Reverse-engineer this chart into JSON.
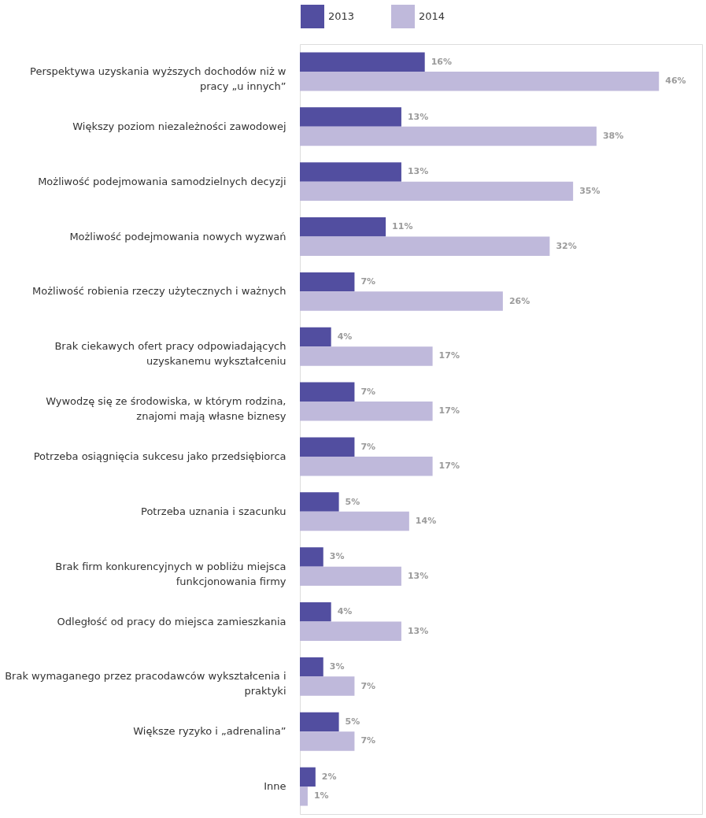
{
  "chart_data": {
    "type": "bar",
    "orientation": "horizontal",
    "legend": "top left",
    "categories": [
      "Perspektywa uzyskania wyższych dochodów niż w pracy „u innych”",
      "Większy poziom niezależności zawodowej",
      "Możliwość podejmowania samodzielnych decyzji",
      "Możliwość podejmowania nowych wyzwań",
      "Możliwość robienia rzeczy użytecznych i ważnych",
      "Brak ciekawych ofert pracy odpowiadających uzyskanemu wykształceniu",
      "Wywodzę się ze środowiska, w którym rodzina, znajomi mają własne biznesy",
      "Potrzeba osiągnięcia sukcesu jako przedsiębiorca",
      "Potrzeba uznania i szacunku",
      "Brak firm konkurencyjnych w pobliżu miejsca funkcjonowania firmy",
      "Odległość od pracy do miejsca zamieszkania",
      "Brak wymaganego przez pracodawców wykształcenia i praktyki",
      "Większe ryzyko i „adrenalina”",
      "Inne"
    ],
    "series": [
      {
        "name": "2013",
        "color": "#524ea0",
        "values": [
          16,
          13,
          13,
          11,
          7,
          4,
          7,
          7,
          5,
          3,
          4,
          3,
          5,
          2
        ],
        "value_labels": [
          "16%",
          "13%",
          "13%",
          "11%",
          "7%",
          "4%",
          "7%",
          "7%",
          "5%",
          "3%",
          "4%",
          "3%",
          "5%",
          "2%"
        ]
      },
      {
        "name": "2014",
        "color": "#bfb9db",
        "values": [
          46,
          38,
          35,
          32,
          26,
          17,
          17,
          17,
          14,
          13,
          13,
          7,
          7,
          1
        ],
        "value_labels": [
          "46%",
          "38%",
          "35%",
          "32%",
          "26%",
          "17%",
          "17%",
          "17%",
          "14%",
          "13%",
          "13%",
          "7%",
          "7%",
          "1%"
        ]
      }
    ]
  }
}
